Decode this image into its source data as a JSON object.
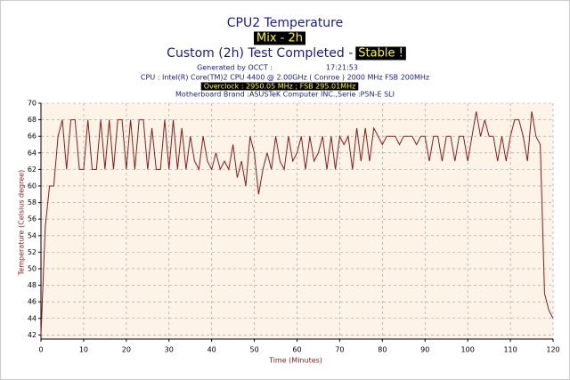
{
  "chart_data": {
    "type": "line",
    "title": "CPU2 Temperature",
    "mode": "Mix - 2h",
    "status_text": "Custom (2h) Test Completed - ",
    "status": "Stable !",
    "generated": "Generated by OCCT :",
    "time": "17:21:53",
    "cpu": "CPU : Intel(R) Core(TM)2 CPU 4400 @ 2.00GHz ( Conroe ) 2000 MHz FSB 200MHz",
    "overclock": "Overclock : 2950.05 MHz ; FSB 295.01MHz",
    "motherboard": "Motherboard Brand :ASUSTeK Computer INC.,Serie :P5N-E SLI",
    "xlabel": "Time (Minutes)",
    "ylabel": "Temperature (Celsius degree)",
    "color": "#8b1a1a",
    "grid": true,
    "x": [
      0,
      1,
      2,
      3,
      4,
      5,
      6,
      7,
      8,
      9,
      10,
      11,
      12,
      13,
      14,
      15,
      16,
      17,
      18,
      19,
      20,
      21,
      22,
      23,
      24,
      25,
      26,
      27,
      28,
      29,
      30,
      31,
      32,
      33,
      34,
      35,
      36,
      37,
      38,
      39,
      40,
      41,
      42,
      43,
      44,
      45,
      46,
      47,
      48,
      49,
      50,
      51,
      52,
      53,
      54,
      55,
      56,
      57,
      58,
      59,
      60,
      61,
      62,
      63,
      64,
      65,
      66,
      67,
      68,
      69,
      70,
      71,
      72,
      73,
      74,
      75,
      76,
      77,
      78,
      79,
      80,
      81,
      82,
      83,
      84,
      85,
      86,
      87,
      88,
      89,
      90,
      91,
      92,
      93,
      94,
      95,
      96,
      97,
      98,
      99,
      100,
      101,
      102,
      103,
      104,
      105,
      106,
      107,
      108,
      109,
      110,
      111,
      112,
      113,
      114,
      115,
      116,
      117,
      118,
      119,
      120
    ],
    "values": [
      42,
      55,
      60,
      60,
      66,
      68,
      62,
      68,
      68,
      62,
      62,
      68,
      62,
      62,
      68,
      62,
      68,
      62,
      68,
      68,
      62,
      68,
      62,
      68,
      68,
      62,
      67,
      62,
      62,
      68,
      62,
      68,
      62,
      67,
      62,
      66,
      63,
      62,
      66,
      63,
      62,
      64,
      62,
      63,
      62,
      65,
      61,
      63,
      60,
      66,
      64,
      59,
      62,
      64,
      62,
      66,
      63,
      62,
      66,
      63,
      64,
      66,
      62,
      66,
      63,
      64,
      66,
      62,
      66,
      62,
      66,
      65,
      66,
      62,
      67,
      63,
      67,
      63,
      67,
      66,
      65,
      66,
      66,
      66,
      65,
      66,
      66,
      66,
      65,
      66,
      66,
      63,
      66,
      66,
      63,
      66,
      66,
      63,
      66,
      66,
      63,
      66,
      69,
      66,
      68,
      66,
      66,
      63,
      66,
      63,
      66,
      68,
      68,
      66,
      63,
      69,
      66,
      65,
      47,
      45,
      44
    ],
    "xlim": [
      0,
      120
    ],
    "ylim": [
      41.5,
      70
    ],
    "xticks": [
      0,
      10,
      20,
      30,
      40,
      50,
      60,
      70,
      80,
      90,
      100,
      110,
      120
    ],
    "yticks": [
      42,
      44,
      46,
      48,
      50,
      52,
      54,
      56,
      58,
      60,
      62,
      64,
      66,
      68,
      70
    ]
  }
}
